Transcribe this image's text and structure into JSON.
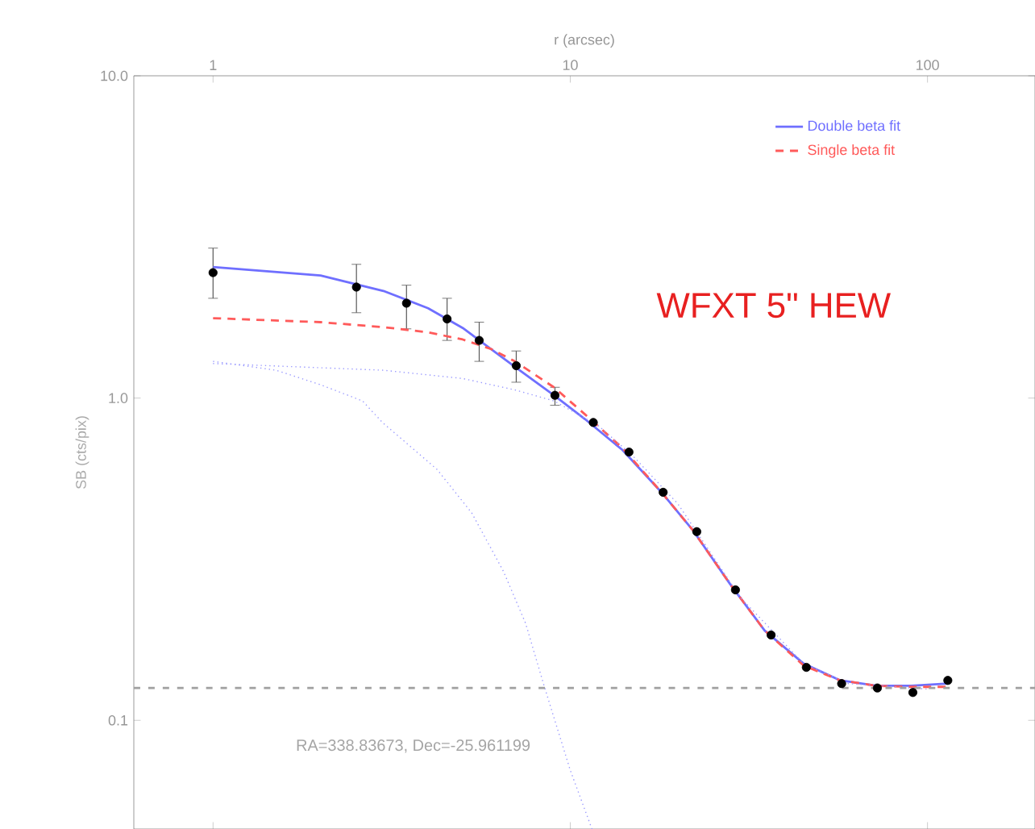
{
  "chart_data": {
    "type": "scatter",
    "xlabel": "r (arcsec)",
    "ylabel": "SB (cts/pix)",
    "log": "xy",
    "xlim": [
      0.6,
      200
    ],
    "ylim": [
      0.046,
      10
    ],
    "xticks": [
      1,
      10,
      100
    ],
    "yticks": [
      0.1,
      {
        "value": 1,
        "label": "1.0"
      },
      {
        "value": 10,
        "label": "10.0"
      }
    ],
    "legend": "top right",
    "grid": false,
    "series": [
      {
        "color": "#000000",
        "marker": "circle",
        "x": [
          1.0,
          2.52,
          3.48,
          4.52,
          5.56,
          7.06,
          9.06,
          11.6,
          14.6,
          18.2,
          22.6,
          29.0,
          36.5,
          45.8,
          57.5,
          72.4,
          91,
          114
        ],
        "values": [
          2.45,
          2.21,
          1.97,
          1.76,
          1.51,
          1.26,
          1.02,
          0.84,
          0.68,
          0.51,
          0.385,
          0.254,
          0.184,
          0.146,
          0.13,
          0.126,
          0.122,
          0.133
        ],
        "errors": [
          [
            2.04,
            2.92
          ],
          [
            1.84,
            2.6
          ],
          [
            1.64,
            2.24
          ],
          [
            1.51,
            2.04
          ],
          [
            1.3,
            1.72
          ],
          [
            1.12,
            1.4
          ],
          [
            0.95,
            1.08
          ],
          null,
          null,
          null,
          null,
          null,
          null,
          null,
          null,
          null,
          null,
          null
        ]
      },
      {
        "type": "line",
        "name": "Double beta fit",
        "color": "#6f6fff",
        "line_style": "solid",
        "x": [
          1,
          2,
          3,
          4,
          5,
          6,
          7,
          9,
          11,
          14,
          18,
          22,
          28,
          35,
          45,
          57,
          72,
          90,
          114
        ],
        "values": [
          2.55,
          2.4,
          2.15,
          1.9,
          1.65,
          1.42,
          1.25,
          1.02,
          0.86,
          0.69,
          0.51,
          0.39,
          0.265,
          0.19,
          0.15,
          0.133,
          0.128,
          0.128,
          0.13
        ]
      },
      {
        "type": "line",
        "name": "Single beta fit",
        "color": "#ff5a5a",
        "line_style": "dashed",
        "x": [
          1,
          2,
          3,
          4,
          5,
          6,
          7,
          9,
          11,
          14,
          18,
          22,
          28,
          35,
          45,
          57,
          72,
          90,
          114
        ],
        "values": [
          1.77,
          1.72,
          1.66,
          1.6,
          1.52,
          1.42,
          1.3,
          1.08,
          0.89,
          0.7,
          0.51,
          0.39,
          0.265,
          0.19,
          0.148,
          0.133,
          0.128,
          0.127,
          0.127
        ]
      },
      {
        "type": "line",
        "color": "#9a9aff",
        "line_style": "dotted",
        "x": [
          1,
          3,
          5,
          7,
          9,
          12,
          15,
          20,
          30,
          45,
          60,
          100
        ],
        "values": [
          1.28,
          1.22,
          1.15,
          1.06,
          0.98,
          0.82,
          0.66,
          0.47,
          0.24,
          0.15,
          0.13,
          0.125
        ]
      },
      {
        "type": "line",
        "color": "#9a9aff",
        "line_style": "dotted",
        "x": [
          1,
          1.5,
          2,
          2.62,
          2.98,
          4.24,
          5.3,
          6.5,
          7.5,
          8.43,
          10,
          11.5
        ],
        "values": [
          1.3,
          1.22,
          1.1,
          0.98,
          0.84,
          0.6,
          0.44,
          0.29,
          0.2,
          0.129,
          0.07,
          0.046
        ]
      }
    ],
    "ref_lines": [
      {
        "axis": "y",
        "value": 0.126,
        "color": "#a0a0a0",
        "line_style": "dashed"
      }
    ],
    "annotations": [
      "WFXT 5\" HEW",
      "RA=338.83673, Dec=-25.961199"
    ]
  }
}
